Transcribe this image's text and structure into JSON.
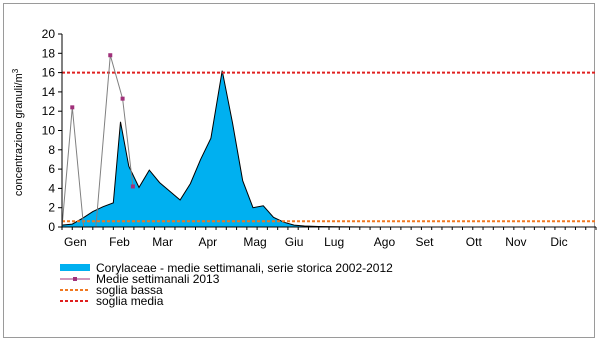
{
  "chart_data": {
    "type": "area",
    "ylabel": "concentrazione granuli/m³",
    "ylabel_base": "concentrazione granuli/m",
    "ylabel_sup": "3",
    "ylim": [
      0,
      20
    ],
    "yticks": [
      0,
      2,
      4,
      6,
      8,
      10,
      12,
      14,
      16,
      18,
      20
    ],
    "xlim": [
      0,
      52
    ],
    "months": [
      "Gen",
      "Feb",
      "Mar",
      "Apr",
      "Mag",
      "Giu",
      "Lug",
      "Ago",
      "Set",
      "Ott",
      "Nov",
      "Dic"
    ],
    "month_weeks": [
      1.3,
      5.6,
      9.8,
      14.2,
      18.8,
      22.6,
      26.5,
      31.4,
      35.3,
      40.1,
      44.2,
      48.4
    ],
    "grid": false,
    "legend_position": "bottom-left",
    "series": [
      {
        "name": "Corylaceae - medie settimanali, serie storica 2002-2012",
        "style": "area",
        "color": "#00b0f0",
        "x": [
          0,
          1,
          2,
          3,
          4,
          5,
          5.7,
          6.5,
          7.5,
          8.5,
          9.5,
          10.5,
          11.5,
          12.5,
          13.5,
          14.5,
          15.6,
          16.6,
          17.6,
          18.6,
          19.6,
          20.6,
          21.6,
          22.6,
          23.6,
          25,
          27,
          30,
          35,
          40,
          45,
          52
        ],
        "y": [
          0.2,
          0.3,
          0.9,
          1.6,
          2.1,
          2.5,
          10.9,
          6.3,
          4.1,
          5.9,
          4.6,
          3.7,
          2.8,
          4.5,
          7.0,
          9.2,
          16.2,
          10.8,
          4.8,
          2.0,
          2.2,
          1.0,
          0.5,
          0.2,
          0.1,
          0.05,
          0.02,
          0,
          0,
          0,
          0,
          0
        ]
      },
      {
        "name": "Medie settimanali 2013",
        "style": "line-markers",
        "color": "#808080",
        "marker_color": "#a0307a",
        "x": [
          0,
          1,
          2.1,
          3.3,
          4.7,
          5.9,
          6.9
        ],
        "y": [
          0,
          12.4,
          0,
          0,
          17.8,
          13.3,
          4.2
        ]
      },
      {
        "name": "soglia bassa",
        "style": "hline",
        "color": "#f07820",
        "value": 0.6
      },
      {
        "name": "soglia media",
        "style": "hline",
        "color": "#e02020",
        "value": 16
      }
    ]
  }
}
